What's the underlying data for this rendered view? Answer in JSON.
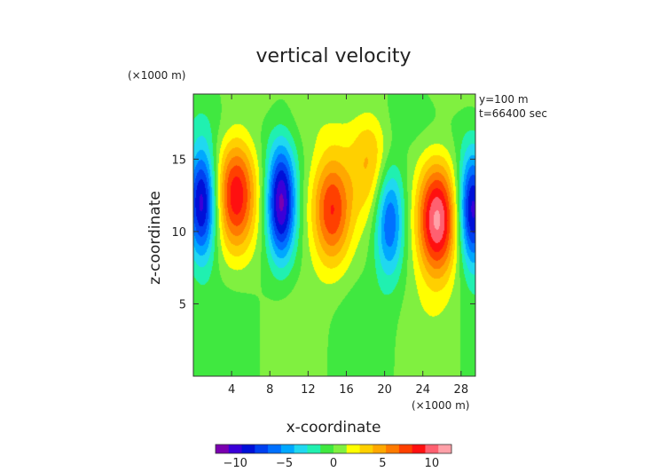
{
  "chart_data": {
    "type": "heatmap",
    "title": "vertical velocity",
    "xlabel": "x-coordinate",
    "ylabel": "z-coordinate",
    "x_unit": "(×1000 m)",
    "y_unit": "(×1000 m)",
    "annotations": [
      "y=100 m",
      "t=66400 sec"
    ],
    "xlim": [
      0,
      29.5
    ],
    "ylim": [
      0,
      19.5
    ],
    "xticks": [
      4,
      8,
      12,
      16,
      20,
      24,
      28
    ],
    "yticks": [
      5,
      10,
      15
    ],
    "colorbar": {
      "ticks": [
        -10,
        -5,
        0,
        5,
        10
      ],
      "range": [
        -12,
        12
      ],
      "colors": [
        "#7a00b0",
        "#3a00d8",
        "#0010d8",
        "#0040f0",
        "#0070ff",
        "#00a8ff",
        "#20d8f0",
        "#20f0b0",
        "#40e840",
        "#80f040",
        "#ffff00",
        "#ffd000",
        "#ffa800",
        "#ff7a00",
        "#ff4000",
        "#ff1010",
        "#ff6070",
        "#ffa0a8"
      ]
    },
    "features": [
      {
        "kind": "updraft",
        "x": 4.5,
        "z": 12.5,
        "peak": 9
      },
      {
        "kind": "updraft",
        "x": 14.5,
        "z": 11.5,
        "peak": 8
      },
      {
        "kind": "updraft",
        "x": 18.5,
        "z": 14.5,
        "peak": 4
      },
      {
        "kind": "updraft",
        "x": 25.5,
        "z": 10.8,
        "peak": 11
      },
      {
        "kind": "downdraft",
        "x": 0.9,
        "z": 12.0,
        "peak": -10
      },
      {
        "kind": "downdraft",
        "x": 9.2,
        "z": 12.0,
        "peak": -11
      },
      {
        "kind": "downdraft",
        "x": 20.5,
        "z": 10.8,
        "peak": -7
      },
      {
        "kind": "downdraft",
        "x": 29.2,
        "z": 11.5,
        "peak": -10
      }
    ]
  }
}
